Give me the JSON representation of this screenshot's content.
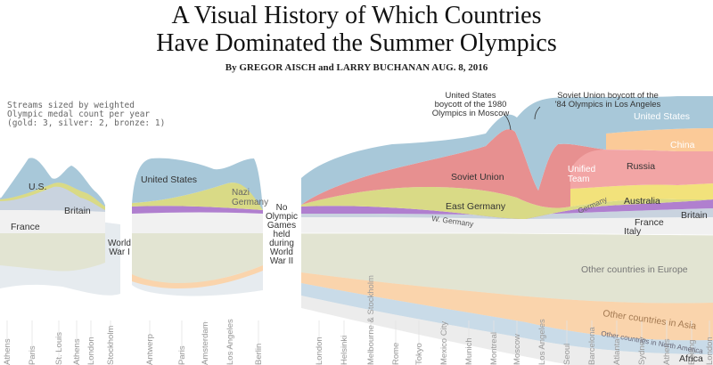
{
  "header": {
    "title_line1": "A Visual History of Which Countries",
    "title_line2": "Have Dominated the Summer Olympics",
    "byline": "By GREGOR AISCH and LARRY BUCHANAN  AUG. 8, 2016"
  },
  "chart_data": {
    "type": "area",
    "note": "Streams sized by weighted\nOlympic medal count per year\n(gold: 3, silver: 2, bronze: 1)",
    "series": [
      {
        "name": "Other countries in Europe",
        "color": "#e2e4d6"
      },
      {
        "name": "Other countries in Asia",
        "color": "#fad8b4"
      },
      {
        "name": "Other countries in North America",
        "color": "#c9dcea"
      },
      {
        "name": "Africa",
        "color": "#e9e9e9"
      },
      {
        "name": "France",
        "color": "#eeeeee"
      },
      {
        "name": "Italy",
        "color": "#f3f3f3"
      },
      {
        "name": "Britain",
        "color": "#c7d3e2"
      },
      {
        "name": "Germany",
        "color": "#b67fd1"
      },
      {
        "name": "East Germany",
        "color": "#dcdc8c"
      },
      {
        "name": "Nazi Germany",
        "color": "#dcdc8c"
      },
      {
        "name": "Australia",
        "color": "#f2e37d"
      },
      {
        "name": "Soviet Union",
        "color": "#e89494"
      },
      {
        "name": "Unified Team",
        "color": "#e89494"
      },
      {
        "name": "Russia",
        "color": "#f2a8a8"
      },
      {
        "name": "China",
        "color": "#fbc99a"
      },
      {
        "name": "United States",
        "color": "#abc9d9"
      },
      {
        "name": "U.S.",
        "color": "#abc9d9"
      }
    ],
    "x_labels": [
      "Athens",
      "Paris",
      "St. Louis",
      "Athens",
      "London",
      "Stockholm",
      "Antwerp",
      "Paris",
      "Amsterdam",
      "Los Angeles",
      "Berlin",
      "London",
      "Helsinki",
      "Melbourne & Stockholm",
      "Rome",
      "Tokyo",
      "Mexico City",
      "Munich",
      "Montreal",
      "Moscow",
      "Los Angeles",
      "Seoul",
      "Barcelona",
      "Atlanta",
      "Sydney",
      "Athens",
      "Beijing",
      "London"
    ],
    "gap_labels": [
      {
        "text": "World\nWar I"
      },
      {
        "text": "No\nOlympic\nGames\nheld\nduring\nWorld\nWar II"
      }
    ],
    "annotations": [
      {
        "text": "United States\nboycott of the 1980\nOlympics in Moscow"
      },
      {
        "text": "Soviet Union boycott of the\n'84 Olympics in Los Angeles"
      }
    ],
    "stream_labels": [
      "United States",
      "U.S.",
      "Britain",
      "France",
      "Nazi Germany",
      "Soviet Union",
      "United States",
      "China",
      "Russia",
      "Unified Team",
      "East Germany",
      "W. Germany",
      "Australia",
      "Germany",
      "France",
      "Britain",
      "Italy",
      "Other countries in Europe",
      "Other countries in Asia",
      "Other countries in North America",
      "Africa"
    ]
  }
}
